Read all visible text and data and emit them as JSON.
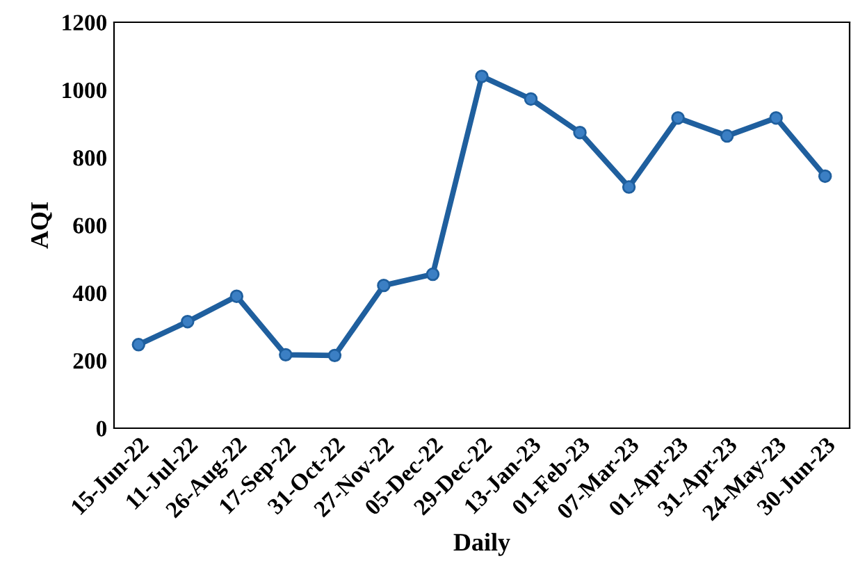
{
  "chart_data": {
    "type": "line",
    "xlabel": "Daily",
    "ylabel": "AQI",
    "categories": [
      "15-Jun-22",
      "11-Jul-22",
      "26-Aug-22",
      "17-Sep-22",
      "31-Oct-22",
      "27-Nov-22",
      "05-Dec-22",
      "29-Dec-22",
      "13-Jan-23",
      "01-Feb-23",
      "07-Mar-23",
      "01-Apr-23",
      "31-Apr-23",
      "24-May-23",
      "30-Jun-23"
    ],
    "series": [
      {
        "color": "#1f5f9e",
        "values": [
          247,
          315,
          390,
          217,
          215,
          422,
          455,
          1040,
          973,
          874,
          713,
          917,
          864,
          917,
          745
        ]
      }
    ],
    "ylim": [
      0,
      1200
    ],
    "yticks": [
      0,
      200,
      400,
      600,
      800,
      1000,
      1200
    ],
    "grid": false,
    "legend": false,
    "marker": "circle",
    "line_style": "solid"
  }
}
